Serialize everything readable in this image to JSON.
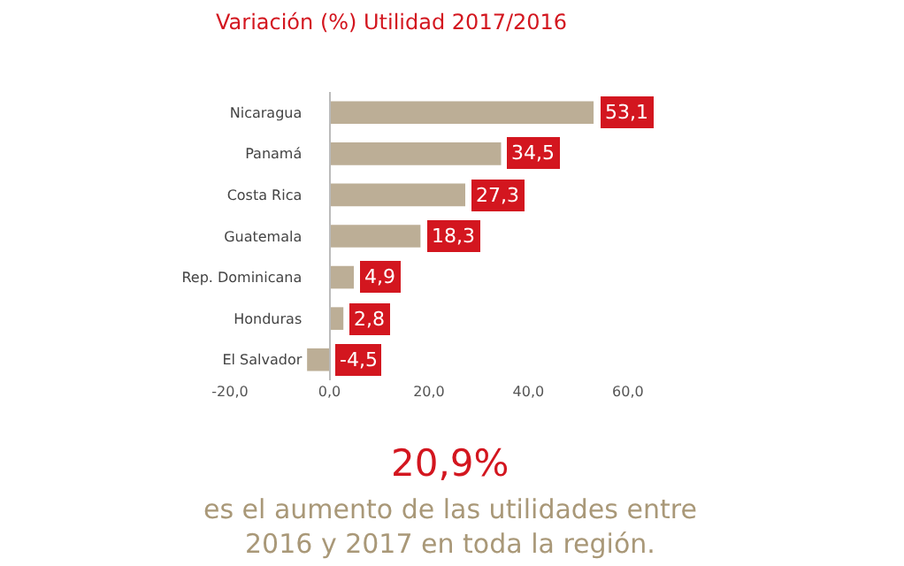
{
  "chart_data": {
    "type": "bar",
    "orientation": "horizontal",
    "title": "Variación (%) Utilidad 2017/2016",
    "categories": [
      "Nicaragua",
      "Panamá",
      "Costa Rica",
      "Guatemala",
      "Rep. Dominicana",
      "Honduras",
      "El Salvador"
    ],
    "values": [
      53.1,
      34.5,
      27.3,
      18.3,
      4.9,
      2.8,
      -4.5
    ],
    "value_labels": [
      "53,1",
      "34,5",
      "27,3",
      "18,3",
      "4,9",
      "2,8",
      "-4,5"
    ],
    "color": "#bcae96",
    "xlim": [
      -20,
      65
    ],
    "xticks": [
      {
        "value": -20,
        "label": "-20,0"
      },
      {
        "value": 0,
        "label": "0,0"
      },
      {
        "value": 20,
        "label": "20,0"
      },
      {
        "value": 40,
        "label": "40,0"
      },
      {
        "value": 60,
        "label": "60,0"
      }
    ],
    "grid": false,
    "legend": false,
    "annotations": [
      "20,9%",
      "es el aumento de las utilidades entre\n2016 y 2017 en toda la región."
    ]
  }
}
